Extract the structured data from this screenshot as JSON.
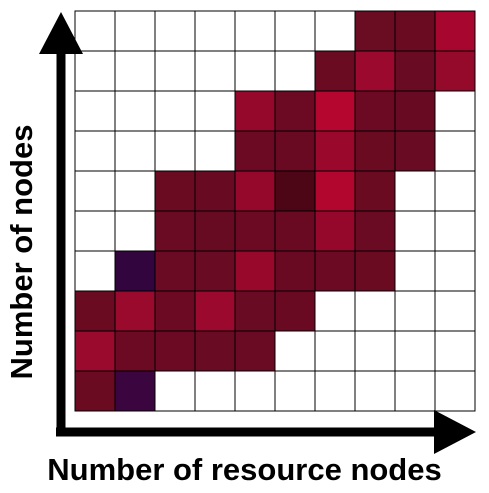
{
  "chart_data": {
    "type": "heatmap",
    "xlabel": "Number of resource nodes",
    "ylabel": "Number of nodes",
    "grid": true,
    "legend": "none",
    "n_cols": 10,
    "n_rows": 10,
    "empty_color": "#ffffff",
    "rows_top_to_bottom": [
      [
        null,
        null,
        null,
        null,
        null,
        null,
        null,
        "#6a0d23",
        "#6a0b22",
        "#a7062e"
      ],
      [
        null,
        null,
        null,
        null,
        null,
        null,
        "#6a0b22",
        "#9b0a2e",
        "#690b22",
        "#950a2b"
      ],
      [
        null,
        null,
        null,
        null,
        "#95082b",
        "#6c0a23",
        "#b4062e",
        "#6c0a23",
        "#680b22",
        null
      ],
      [
        null,
        null,
        null,
        null,
        "#6c0a23",
        "#690a22",
        "#9a082b",
        "#6a0b22",
        "#690b22",
        null
      ],
      [
        null,
        null,
        "#6a0b22",
        "#680b22",
        "#96082b",
        "#4d0615",
        "#b3062e",
        "#6a0b22",
        null,
        null
      ],
      [
        null,
        null,
        "#6b0a23",
        "#660b22",
        "#6c0a23",
        "#6a0a22",
        "#95082b",
        "#6b0a23",
        null,
        null
      ],
      [
        null,
        "#32053f",
        "#6b0a23",
        "#690b22",
        "#97082b",
        "#6a0a22",
        "#6c0a23",
        "#6a0b22",
        null,
        null
      ],
      [
        "#6a0b22",
        "#990a2d",
        "#6c0a23",
        "#9b0a2e",
        "#690b22",
        "#6a0a22",
        null,
        null,
        null,
        null
      ],
      [
        "#990a2d",
        "#6c0a23",
        "#6c0a23",
        "#690b22",
        "#6b0a23",
        null,
        null,
        null,
        null,
        null
      ],
      [
        "#6a0b22",
        "#3b0540",
        null,
        null,
        null,
        null,
        null,
        null,
        null,
        null
      ]
    ]
  }
}
